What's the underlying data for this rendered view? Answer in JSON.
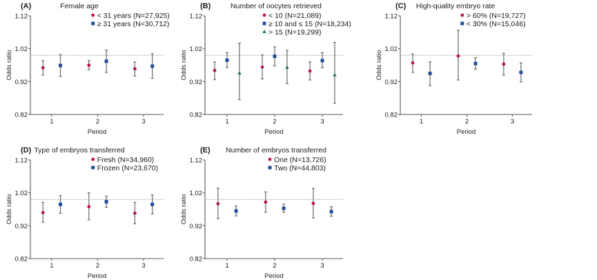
{
  "figure": {
    "colors": {
      "red": "#b5174c",
      "blue": "#1f4e9c",
      "green": "#1e7b4a"
    }
  },
  "chart_data": [
    {
      "type": "scatter",
      "panel": "(A)",
      "title": "Female age",
      "xlabel": "Period",
      "ylabel": "Odds ratio",
      "x_ticks": [
        "1",
        "2",
        "3"
      ],
      "y_ticks": [
        "0.82",
        "0.92",
        "1.02",
        "1.12"
      ],
      "ylim": [
        0.82,
        1.12
      ],
      "reference_line": 1.0,
      "legend_position": "top-right",
      "series": [
        {
          "name": "< 31 years (N=27,925)",
          "marker": "circle",
          "color": "red",
          "or": [
            0.962,
            0.97,
            0.959
          ],
          "lower": [
            0.94,
            0.956,
            0.937
          ],
          "upper": [
            0.984,
            0.984,
            0.98
          ]
        },
        {
          "name": "≥ 31 years (N=30,712)",
          "marker": "square",
          "color": "blue",
          "or": [
            0.969,
            0.982,
            0.967
          ],
          "lower": [
            0.936,
            0.948,
            0.93
          ],
          "upper": [
            1.002,
            1.016,
            1.005
          ]
        }
      ]
    },
    {
      "type": "scatter",
      "panel": "(B)",
      "title": "Number of oocytes retrieved",
      "xlabel": "Period",
      "ylabel": "Odds ratio",
      "x_ticks": [
        "1",
        "2",
        "3"
      ],
      "y_ticks": [
        "0.82",
        "0.92",
        "1.02",
        "1.12"
      ],
      "ylim": [
        0.82,
        1.12
      ],
      "reference_line": 1.0,
      "legend_position": "top-right",
      "series": [
        {
          "name": "< 10 (N=21,089)",
          "marker": "circle",
          "color": "red",
          "or": [
            0.954,
            0.964,
            0.952
          ],
          "lower": [
            0.926,
            0.928,
            0.925
          ],
          "upper": [
            0.98,
            1.001,
            0.98
          ]
        },
        {
          "name": "≥ 10 and ≤ 15 (N=18,234)",
          "marker": "square",
          "color": "blue",
          "or": [
            0.985,
            0.997,
            0.984
          ],
          "lower": [
            0.963,
            0.968,
            0.962
          ],
          "upper": [
            1.008,
            1.026,
            1.008
          ]
        },
        {
          "name": "> 15 (N=19,299)",
          "marker": "triangle",
          "color": "green",
          "or": [
            0.946,
            0.963,
            0.94
          ],
          "lower": [
            0.865,
            0.914,
            0.854
          ],
          "upper": [
            1.037,
            1.015,
            1.039
          ]
        }
      ]
    },
    {
      "type": "scatter",
      "panel": "(C)",
      "title": "High-quality embryo rate",
      "xlabel": "Period",
      "ylabel": "Odds ratio",
      "x_ticks": [
        "1",
        "2",
        "3"
      ],
      "y_ticks": [
        "0.82",
        "0.92",
        "1.02",
        "1.12"
      ],
      "ylim": [
        0.82,
        1.12
      ],
      "reference_line": 1.0,
      "legend_position": "top-right",
      "series": [
        {
          "name": "> 60% (N=19,727)",
          "marker": "circle",
          "color": "red",
          "or": [
            0.977,
            0.998,
            0.973
          ],
          "lower": [
            0.948,
            0.925,
            0.94
          ],
          "upper": [
            1.004,
            1.076,
            1.006
          ]
        },
        {
          "name": "< 30% (N=15,046)",
          "marker": "square",
          "color": "blue",
          "or": [
            0.945,
            0.975,
            0.948
          ],
          "lower": [
            0.908,
            0.958,
            0.919
          ],
          "upper": [
            0.98,
            0.993,
            0.977
          ]
        }
      ]
    },
    {
      "type": "scatter",
      "panel": "(D)",
      "title": "Type of embryos transferred",
      "xlabel": "Period",
      "ylabel": "Odds ratio",
      "x_ticks": [
        "1",
        "2",
        "3"
      ],
      "y_ticks": [
        "0.82",
        "0.92",
        "1.02",
        "1.12"
      ],
      "ylim": [
        0.82,
        1.12
      ],
      "reference_line": 1.0,
      "legend_position": "top-right",
      "series": [
        {
          "name": "Fresh (N=34,960)",
          "marker": "circle",
          "color": "red",
          "or": [
            0.96,
            0.978,
            0.958
          ],
          "lower": [
            0.931,
            0.938,
            0.926
          ],
          "upper": [
            0.991,
            1.02,
            0.991
          ]
        },
        {
          "name": "Frozen (N=23,670)",
          "marker": "square",
          "color": "blue",
          "or": [
            0.985,
            0.993,
            0.985
          ],
          "lower": [
            0.958,
            0.976,
            0.956
          ],
          "upper": [
            1.012,
            1.01,
            1.014
          ]
        }
      ]
    },
    {
      "type": "scatter",
      "panel": "(E)",
      "title": "Number of embryos transferred",
      "xlabel": "Period",
      "ylabel": "Odds ratio",
      "x_ticks": [
        "1",
        "2",
        "3"
      ],
      "y_ticks": [
        "0.82",
        "0.92",
        "1.02",
        "1.12"
      ],
      "ylim": [
        0.82,
        1.12
      ],
      "reference_line": 1.0,
      "legend_position": "top-right",
      "series": [
        {
          "name": "One (N=13,726)",
          "marker": "circle",
          "color": "red",
          "or": [
            0.987,
            0.992,
            0.988
          ],
          "lower": [
            0.942,
            0.961,
            0.944
          ],
          "upper": [
            1.034,
            1.023,
            1.034
          ]
        },
        {
          "name": "Two (N=44,803)",
          "marker": "square",
          "color": "blue",
          "or": [
            0.965,
            0.973,
            0.963
          ],
          "lower": [
            0.95,
            0.961,
            0.949
          ],
          "upper": [
            0.98,
            0.986,
            0.978
          ]
        }
      ]
    }
  ]
}
